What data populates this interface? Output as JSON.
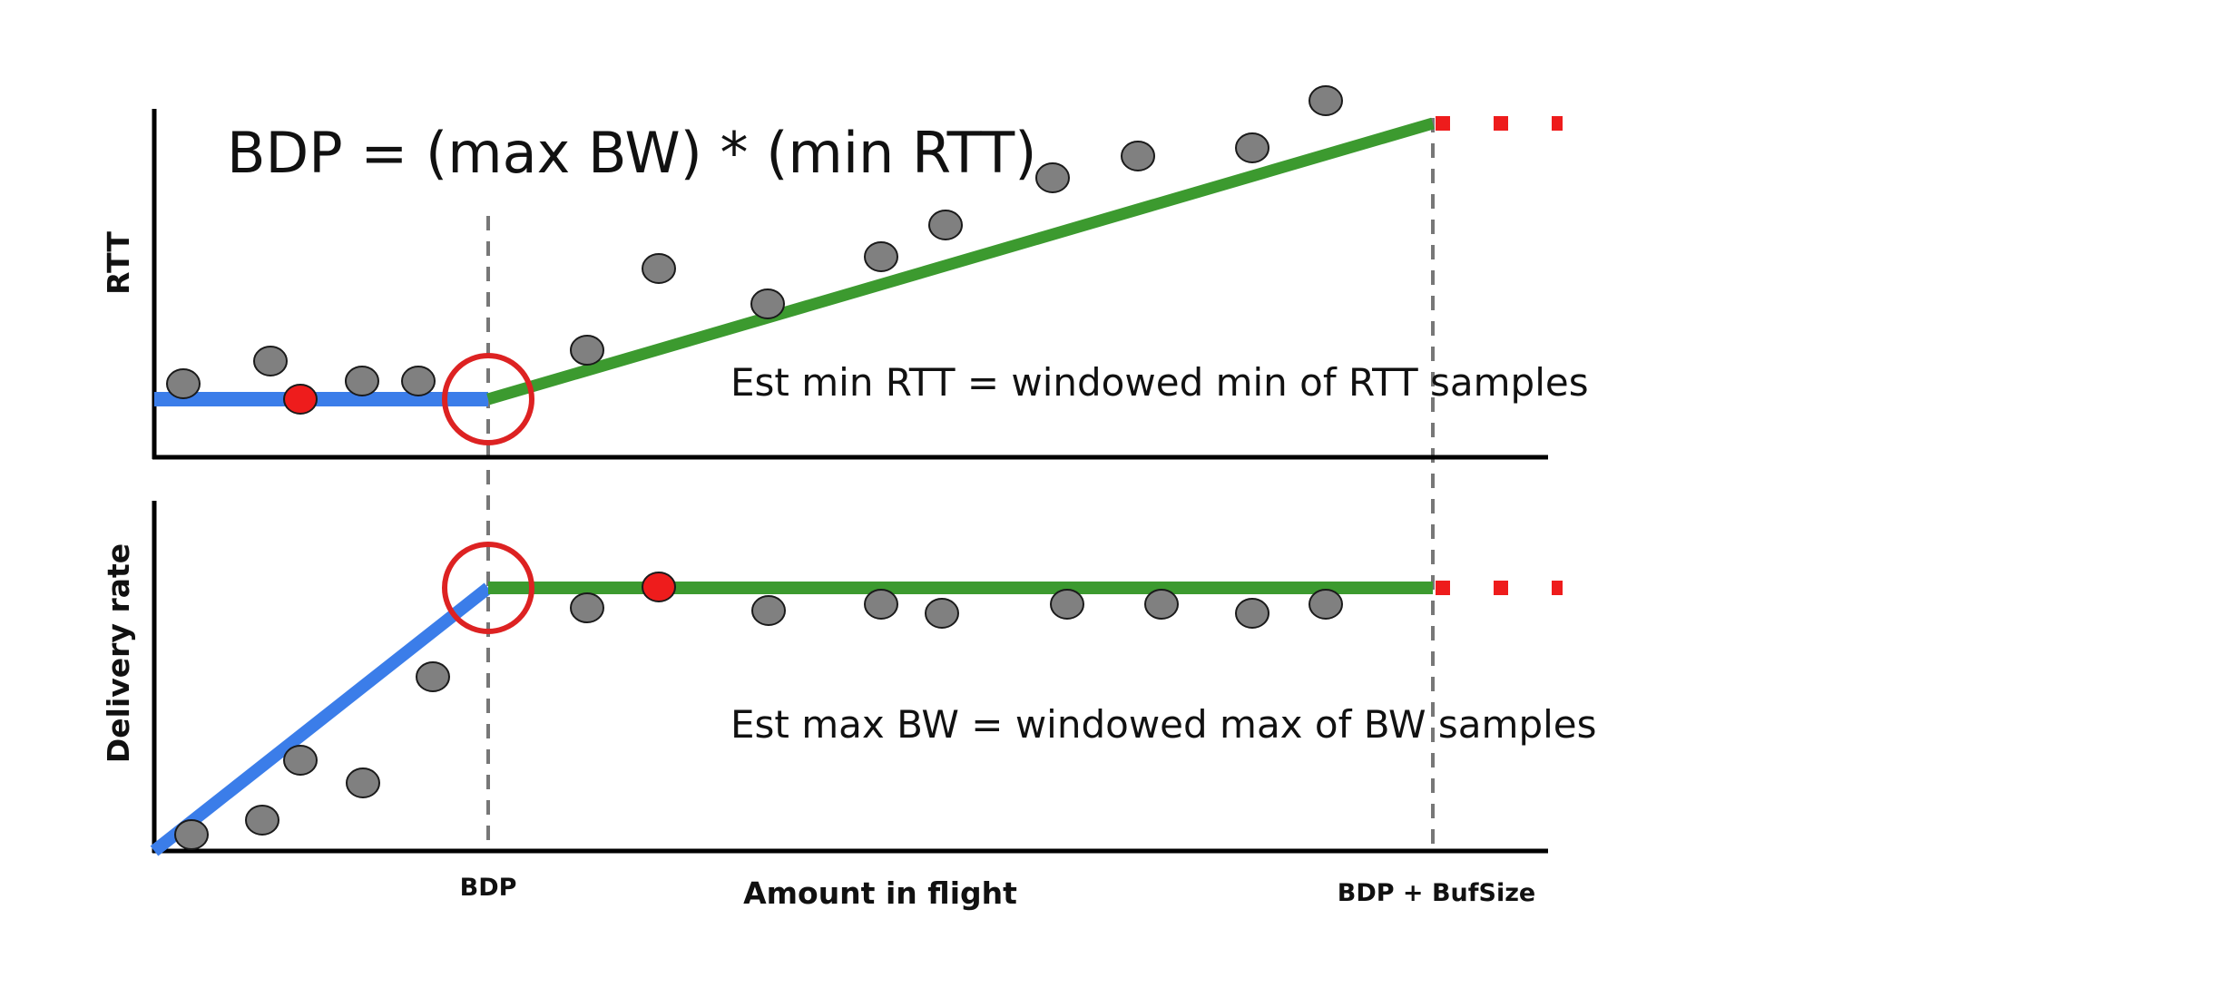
{
  "formula": "BDP = (max BW) * (min RTT)",
  "top_panel": {
    "ylabel": "RTT",
    "annotation": "Est min RTT = windowed min of RTT samples"
  },
  "bottom_panel": {
    "ylabel": "Delivery rate",
    "annotation": "Est max BW = windowed max of BW samples"
  },
  "xlabel": "Amount in flight",
  "x_markers": {
    "bdp": "BDP",
    "bdp_bufsize": "BDP + BufSize"
  },
  "colors": {
    "app_limited_line": "#3b7de9",
    "bandwidth_limited_line": "#3c9a2f",
    "buffer_limited_line": "#ee1c1c",
    "sample": "#808080",
    "highlight_sample": "#ee1c1c",
    "operating_point_circle": "#dd2222",
    "axis": "#000000",
    "guide_line": "#777777"
  }
}
